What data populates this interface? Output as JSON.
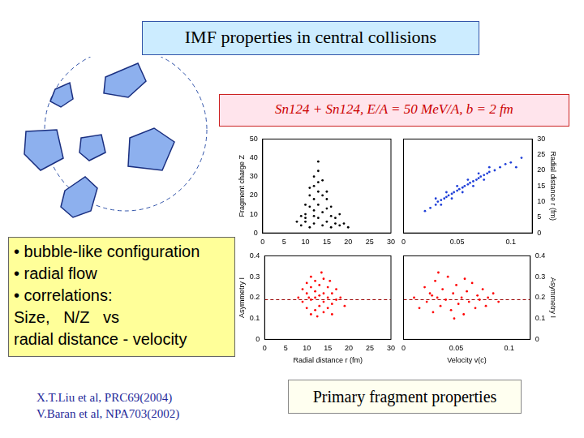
{
  "slide": {
    "title": "IMF properties in central collisions",
    "subtitle": "Sn124 + Sn124, E/A = 50 MeV/A, b = 2 fm",
    "bullets": [
      "• bubble-like configuration",
      "• radial flow",
      "• correlations:",
      "Size,   N/Z   vs",
      "radial distance - velocity"
    ],
    "references": [
      "X.T.Liu et al, PRC69(2004)",
      "V.Baran et al, NPA703(2002)"
    ],
    "caption": "Primary fragment properties"
  },
  "chart_data": [
    {
      "type": "scatter",
      "ylabel": "Fragment charge Z",
      "color": "#000000",
      "grid": false,
      "xlim": [
        0,
        30
      ],
      "xticks": [
        0,
        5,
        10,
        15,
        20,
        25,
        30
      ],
      "ylim": [
        0,
        50
      ],
      "yticks": [
        0,
        10,
        20,
        30,
        40,
        50
      ],
      "x": [
        9,
        10,
        11,
        12,
        13,
        14,
        15,
        16,
        17,
        18,
        10,
        12,
        13,
        14,
        11,
        15,
        16,
        12,
        13,
        14,
        12,
        13,
        11,
        15,
        10,
        9,
        17,
        19,
        20,
        8,
        12,
        13,
        14,
        11,
        16,
        18,
        13,
        10,
        15,
        12
      ],
      "values": [
        4,
        6,
        3,
        5,
        8,
        4,
        6,
        3,
        5,
        4,
        10,
        12,
        15,
        11,
        14,
        13,
        9,
        18,
        22,
        20,
        25,
        27,
        20,
        18,
        8,
        9,
        8,
        5,
        3,
        6,
        30,
        33,
        28,
        24,
        14,
        10,
        38,
        15,
        22,
        9
      ]
    },
    {
      "type": "scatter",
      "ylabel": "Radial distance r (fm)",
      "color": "#1f3fd8",
      "grid": false,
      "xlim": [
        0,
        0.12
      ],
      "xticks": [
        0,
        0.05,
        0.1
      ],
      "ylim": [
        0,
        30
      ],
      "yticks": [
        0,
        5,
        10,
        15,
        20,
        25,
        30
      ],
      "x": [
        0.02,
        0.025,
        0.03,
        0.032,
        0.035,
        0.038,
        0.04,
        0.042,
        0.045,
        0.047,
        0.05,
        0.052,
        0.055,
        0.057,
        0.06,
        0.062,
        0.065,
        0.068,
        0.07,
        0.072,
        0.075,
        0.078,
        0.08,
        0.085,
        0.09,
        0.095,
        0.1,
        0.04,
        0.045,
        0.05,
        0.055,
        0.06,
        0.065,
        0.03,
        0.035,
        0.07,
        0.075,
        0.08,
        0.11,
        0.105
      ],
      "values": [
        7,
        8,
        9,
        10,
        10.5,
        11,
        11.5,
        12,
        12.5,
        13,
        13.5,
        14,
        14.5,
        15,
        15.5,
        16,
        16.5,
        17,
        17.5,
        18,
        18.5,
        19,
        19.5,
        20,
        21,
        22,
        22.5,
        13,
        11,
        15,
        13,
        17,
        15,
        11,
        9,
        19,
        17,
        21,
        24,
        21
      ]
    },
    {
      "type": "scatter",
      "xlabel": "Radial distance r (fm)",
      "ylabel": "Asymmetry I",
      "color": "#ff0000",
      "grid": false,
      "xlim": [
        0,
        30
      ],
      "xticks": [
        0,
        5,
        10,
        15,
        20,
        25,
        30
      ],
      "ylim": [
        0,
        0.4
      ],
      "yticks": [
        0,
        0.1,
        0.2,
        0.3,
        0.4
      ],
      "reference_y": 0.19,
      "x": [
        8,
        9,
        9,
        10,
        10,
        10,
        11,
        11,
        11,
        11,
        12,
        12,
        12,
        12,
        13,
        13,
        13,
        14,
        14,
        14,
        14,
        15,
        15,
        15,
        16,
        16,
        16,
        17,
        17,
        18,
        19,
        12.5,
        13.5,
        10.5,
        15.5
      ],
      "values": [
        0.2,
        0.18,
        0.24,
        0.15,
        0.22,
        0.27,
        0.12,
        0.19,
        0.25,
        0.3,
        0.14,
        0.2,
        0.23,
        0.28,
        0.16,
        0.21,
        0.26,
        0.13,
        0.18,
        0.22,
        0.29,
        0.15,
        0.2,
        0.25,
        0.17,
        0.22,
        0.12,
        0.19,
        0.24,
        0.2,
        0.16,
        0.11,
        0.32,
        0.2,
        0.28
      ]
    },
    {
      "type": "scatter",
      "xlabel": "Velocity v(c)",
      "ylabel": "Asymmetry I",
      "color": "#ff0000",
      "grid": false,
      "xlim": [
        0,
        0.12
      ],
      "xticks": [
        0,
        0.05,
        0.1
      ],
      "ylim": [
        0,
        0.4
      ],
      "yticks": [
        0,
        0.1,
        0.2,
        0.3,
        0.4
      ],
      "reference_y": 0.19,
      "x": [
        0.01,
        0.015,
        0.02,
        0.022,
        0.025,
        0.028,
        0.03,
        0.032,
        0.035,
        0.037,
        0.04,
        0.042,
        0.045,
        0.047,
        0.05,
        0.052,
        0.055,
        0.057,
        0.06,
        0.062,
        0.065,
        0.068,
        0.07,
        0.072,
        0.075,
        0.078,
        0.08,
        0.085,
        0.09,
        0.033,
        0.048,
        0.058,
        0.027
      ],
      "values": [
        0.2,
        0.15,
        0.25,
        0.18,
        0.22,
        0.13,
        0.28,
        0.2,
        0.16,
        0.24,
        0.19,
        0.3,
        0.14,
        0.22,
        0.26,
        0.17,
        0.2,
        0.12,
        0.23,
        0.18,
        0.27,
        0.15,
        0.21,
        0.19,
        0.24,
        0.16,
        0.2,
        0.22,
        0.18,
        0.32,
        0.1,
        0.29,
        0.21
      ]
    }
  ]
}
